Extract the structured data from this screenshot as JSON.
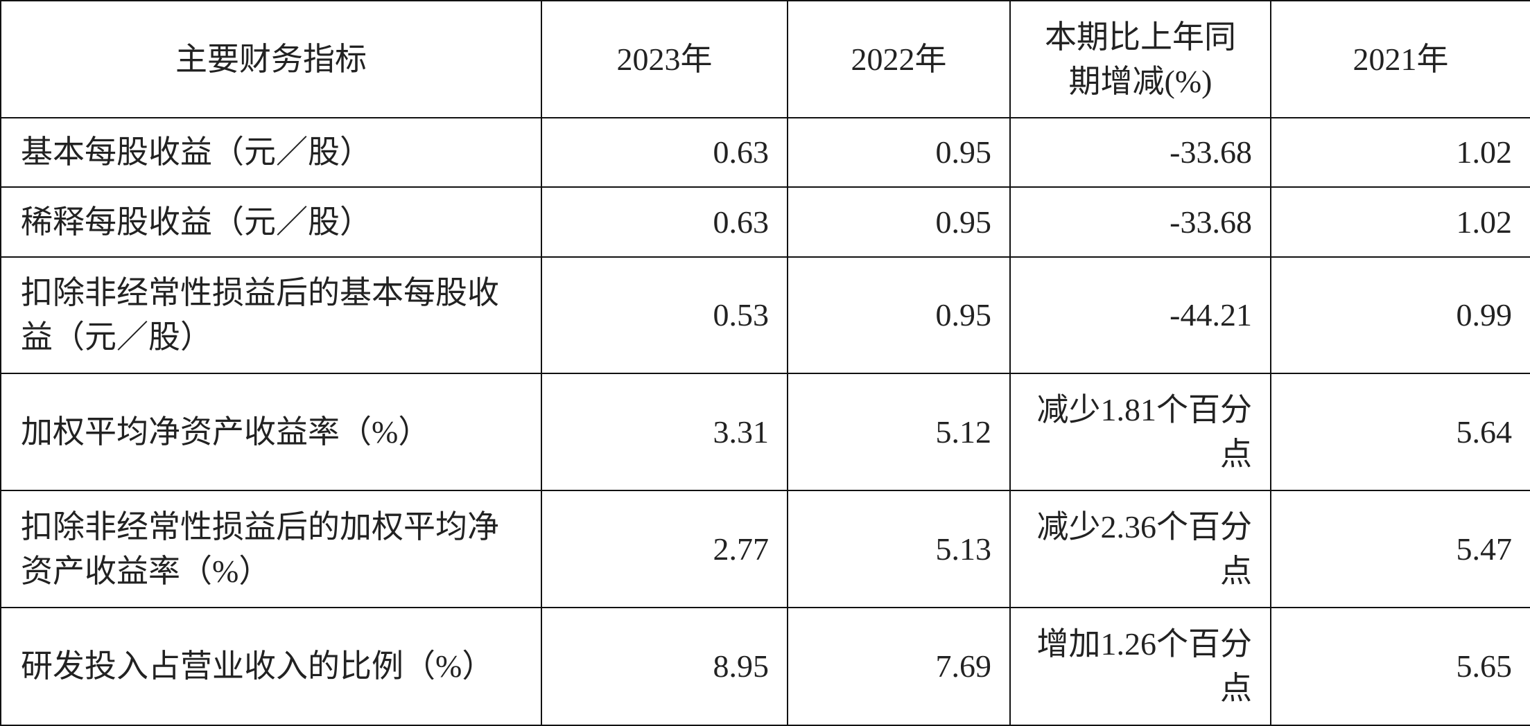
{
  "table": {
    "columns": [
      "主要财务指标",
      "2023年",
      "2022年",
      "本期比上年同期增减(%)",
      "2021年"
    ],
    "rows": [
      [
        "基本每股收益（元／股）",
        "0.63",
        "0.95",
        "-33.68",
        "1.02"
      ],
      [
        "稀释每股收益（元／股）",
        "0.63",
        "0.95",
        "-33.68",
        "1.02"
      ],
      [
        "扣除非经常性损益后的基本每股收益（元／股）",
        "0.53",
        "0.95",
        "-44.21",
        "0.99"
      ],
      [
        "加权平均净资产收益率（%）",
        "3.31",
        "5.12",
        "减少1.81个百分点",
        "5.64"
      ],
      [
        "扣除非经常性损益后的加权平均净资产收益率（%）",
        "2.77",
        "5.13",
        "减少2.36个百分点",
        "5.47"
      ],
      [
        "研发投入占营业收入的比例（%）",
        "8.95",
        "7.69",
        "增加1.26个百分点",
        "5.65"
      ]
    ]
  }
}
